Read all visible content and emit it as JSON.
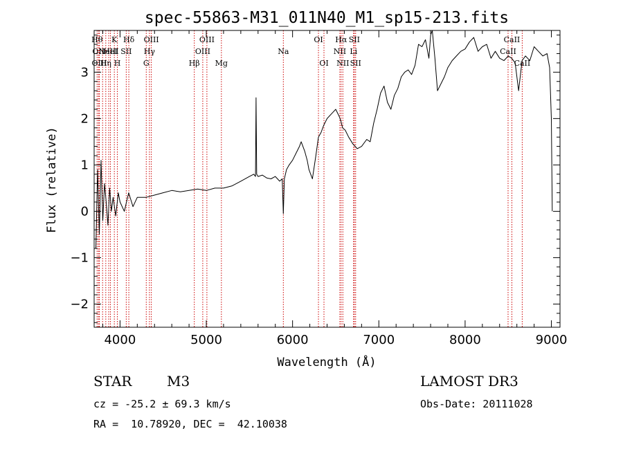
{
  "chart_data": {
    "type": "line",
    "title": "spec-55863-M31_011N40_M1_sp15-213.fits",
    "xlabel": "Wavelength (Å)",
    "ylabel": "Flux (relative)",
    "xlim": [
      3700,
      9100
    ],
    "ylim": [
      -2.5,
      3.9
    ],
    "xticks": [
      4000,
      5000,
      6000,
      7000,
      8000,
      9000
    ],
    "xtick_labels": [
      "4000",
      "5000",
      "6000",
      "7000",
      "8000",
      "9000"
    ],
    "yticks": [
      -2,
      -1,
      0,
      1,
      2,
      3
    ],
    "ytick_labels": [
      "−2",
      "−1",
      "0",
      "1",
      "2",
      "3"
    ],
    "grid": false,
    "series": [
      {
        "name": "spectrum",
        "color": "#000000",
        "x": [
          3720,
          3740,
          3760,
          3780,
          3800,
          3820,
          3840,
          3860,
          3880,
          3900,
          3920,
          3950,
          3980,
          4000,
          4050,
          4100,
          4150,
          4200,
          4300,
          4400,
          4500,
          4600,
          4700,
          4800,
          4900,
          5000,
          5100,
          5200,
          5300,
          5400,
          5500,
          5550,
          5570,
          5577,
          5584,
          5600,
          5650,
          5700,
          5750,
          5800,
          5850,
          5880,
          5893,
          5905,
          5930,
          5960,
          6000,
          6040,
          6080,
          6100,
          6140,
          6170,
          6190,
          6230,
          6270,
          6300,
          6330,
          6360,
          6400,
          6450,
          6500,
          6540,
          6560,
          6580,
          6610,
          6650,
          6700,
          6750,
          6800,
          6860,
          6900,
          6940,
          6980,
          7020,
          7060,
          7100,
          7140,
          7180,
          7220,
          7260,
          7300,
          7340,
          7380,
          7420,
          7460,
          7500,
          7540,
          7580,
          7600,
          7620,
          7650,
          7680,
          7720,
          7760,
          7800,
          7850,
          7900,
          7950,
          8000,
          8050,
          8100,
          8150,
          8200,
          8250,
          8300,
          8350,
          8400,
          8450,
          8500,
          8540,
          8580,
          8620,
          8660,
          8700,
          8750,
          8800,
          8850,
          8900,
          8950,
          8980,
          9000,
          9010
        ],
        "values": [
          -0.8,
          0.9,
          -0.5,
          1.1,
          -0.2,
          0.6,
          0.2,
          -0.3,
          0.5,
          0.0,
          0.3,
          -0.1,
          0.4,
          0.2,
          0.0,
          0.4,
          0.1,
          0.3,
          0.3,
          0.35,
          0.4,
          0.45,
          0.42,
          0.45,
          0.48,
          0.45,
          0.5,
          0.5,
          0.55,
          0.65,
          0.75,
          0.8,
          0.75,
          2.45,
          0.8,
          0.75,
          0.78,
          0.72,
          0.7,
          0.75,
          0.65,
          0.7,
          -0.05,
          0.7,
          0.9,
          1.0,
          1.1,
          1.25,
          1.4,
          1.5,
          1.3,
          1.1,
          0.9,
          0.7,
          1.2,
          1.6,
          1.7,
          1.85,
          2.0,
          2.1,
          2.2,
          2.05,
          1.95,
          1.8,
          1.75,
          1.6,
          1.45,
          1.35,
          1.4,
          1.55,
          1.5,
          1.9,
          2.2,
          2.55,
          2.7,
          2.35,
          2.2,
          2.5,
          2.65,
          2.9,
          3.0,
          3.05,
          2.95,
          3.15,
          3.6,
          3.55,
          3.7,
          3.3,
          3.8,
          3.9,
          3.3,
          2.6,
          2.75,
          2.9,
          3.1,
          3.25,
          3.35,
          3.45,
          3.5,
          3.65,
          3.75,
          3.45,
          3.55,
          3.6,
          3.3,
          3.45,
          3.3,
          3.25,
          3.35,
          3.3,
          3.2,
          2.6,
          3.25,
          3.35,
          3.25,
          3.55,
          3.45,
          3.35,
          3.4,
          3.1,
          2.0,
          0.0
        ]
      }
    ],
    "spectral_lines": [
      {
        "x": 3734,
        "label": "Hθ",
        "row": 1
      },
      {
        "x": 3750,
        "label": "OII",
        "row": 2
      },
      {
        "x": 3760,
        "label": "OIII",
        "row": 3
      },
      {
        "x": 3798,
        "label": "",
        "row": 0
      },
      {
        "x": 3835,
        "label": "Hη",
        "row": 3
      },
      {
        "x": 3869,
        "label": "NeIII",
        "row": 2
      },
      {
        "x": 3889,
        "label": "HeI",
        "row": 2
      },
      {
        "x": 3934,
        "label": "K",
        "row": 1
      },
      {
        "x": 3969,
        "label": "H",
        "row": 3
      },
      {
        "x": 4072,
        "label": "SII",
        "row": 2
      },
      {
        "x": 4102,
        "label": "Hδ",
        "row": 1
      },
      {
        "x": 4304,
        "label": "G",
        "row": 3
      },
      {
        "x": 4341,
        "label": "Hγ",
        "row": 2
      },
      {
        "x": 4363,
        "label": "OIII",
        "row": 1
      },
      {
        "x": 4861,
        "label": "Hβ",
        "row": 3
      },
      {
        "x": 4959,
        "label": "OIII",
        "row": 2
      },
      {
        "x": 5007,
        "label": "OIII",
        "row": 1
      },
      {
        "x": 5175,
        "label": "Mg",
        "row": 3
      },
      {
        "x": 5893,
        "label": "Na",
        "row": 2
      },
      {
        "x": 6300,
        "label": "OI",
        "row": 1
      },
      {
        "x": 6364,
        "label": "OI",
        "row": 3
      },
      {
        "x": 6548,
        "label": "NII",
        "row": 2
      },
      {
        "x": 6563,
        "label": "Hα",
        "row": 1
      },
      {
        "x": 6583,
        "label": "NII",
        "row": 3
      },
      {
        "x": 6707,
        "label": "Li",
        "row": 2
      },
      {
        "x": 6716,
        "label": "SII",
        "row": 1
      },
      {
        "x": 6731,
        "label": "SII",
        "row": 3
      },
      {
        "x": 8498,
        "label": "CaII",
        "row": 2
      },
      {
        "x": 8542,
        "label": "CaII",
        "row": 1
      },
      {
        "x": 8662,
        "label": "CaII",
        "row": 3
      }
    ],
    "line_color": "#cc0000"
  },
  "info": {
    "object_class": "STAR",
    "subclass": "M3",
    "survey": "LAMOST DR3",
    "redshift": "cz = -25.2 ± 69.3 km/s",
    "obs_date": "Obs-Date: 20111028",
    "coords": "RA =  10.78920, DEC =  42.10038"
  }
}
